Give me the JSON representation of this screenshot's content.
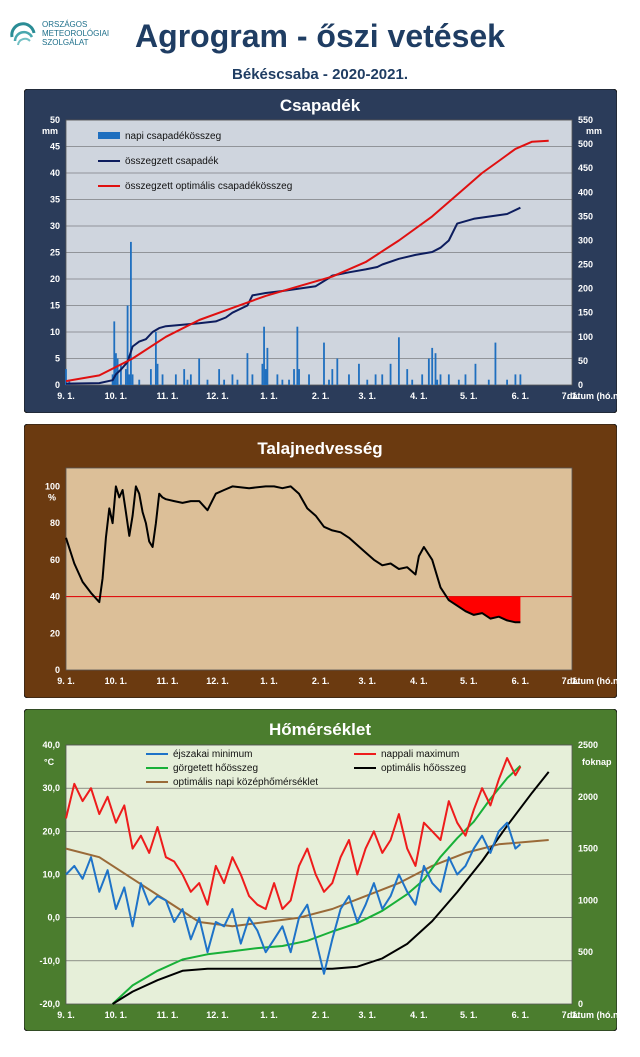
{
  "header": {
    "org_lines": [
      "ORSZÁGOS",
      "METEOROLÓGIAI",
      "SZOLGÁLAT"
    ],
    "title": "Agrogram - őszi vetések",
    "subtitle": "Békéscsaba - 2020-2021."
  },
  "colors": {
    "title": "#1f3d63",
    "panel1_bg": "#2b3c5a",
    "panel1_plot": "#cfd5de",
    "panel2_bg": "#6b3a10",
    "panel2_plot": "#dcbf98",
    "panel3_bg": "#4b7d2e",
    "panel3_plot": "#e6efd9"
  },
  "date_ticks": [
    "9. 1.",
    "10. 1.",
    "11. 1.",
    "12. 1.",
    "1. 1.",
    "2. 1.",
    "3. 1.",
    "4. 1.",
    "5. 1.",
    "6. 1.",
    "7. 1."
  ],
  "x_axis_label": "dátum (hó.nap)",
  "chart_data": [
    {
      "type": "bar+line",
      "title": "Csapadék",
      "y_left_unit": "mm",
      "y_right_unit": "mm",
      "y_left_ticks": [
        "0",
        "5",
        "10",
        "15",
        "20",
        "25",
        "30",
        "35",
        "40",
        "45",
        "50"
      ],
      "y_right_ticks": [
        "0",
        "50",
        "100",
        "150",
        "200",
        "250",
        "300",
        "350",
        "400",
        "450",
        "500",
        "550"
      ],
      "ylim_left": [
        0,
        50
      ],
      "ylim_right": [
        0,
        550
      ],
      "legend": [
        "napi csapadékösszeg",
        "összegzett csapadék",
        "összegzett optimális csapadékösszeg"
      ],
      "series": [
        {
          "name": "napi csapadékösszeg",
          "axis": "left",
          "kind": "bar",
          "color": "#1f6fbf",
          "x": [
            0,
            2,
            28,
            29,
            30,
            31,
            33,
            36,
            37,
            38,
            39,
            40,
            44,
            51,
            54,
            55,
            58,
            66,
            71,
            73,
            75,
            80,
            85,
            92,
            95,
            100,
            103,
            109,
            112,
            118,
            119,
            120,
            121,
            127,
            130,
            134,
            137,
            139,
            140,
            146,
            155,
            158,
            160,
            163,
            170,
            176,
            181,
            186,
            190,
            195,
            200,
            205,
            208,
            214,
            218,
            220,
            222,
            223,
            225,
            230,
            236,
            240,
            246,
            254,
            258,
            265,
            270,
            273
          ],
          "y": [
            3,
            1,
            2,
            12,
            6,
            5,
            4,
            3,
            15,
            2,
            27,
            2,
            1,
            3,
            10,
            4,
            2,
            2,
            3,
            1,
            2,
            5,
            1,
            3,
            1,
            2,
            1,
            6,
            2,
            4,
            11,
            3,
            7,
            2,
            1,
            1,
            3,
            11,
            3,
            2,
            8,
            1,
            3,
            5,
            2,
            4,
            1,
            2,
            2,
            4,
            9,
            3,
            1,
            2,
            5,
            7,
            6,
            1,
            2,
            2,
            1,
            2,
            4,
            1,
            8,
            1,
            2,
            2
          ]
        },
        {
          "name": "összegzett csapadék",
          "axis": "right",
          "kind": "line",
          "color": "#0d1d5e",
          "x": [
            0,
            20,
            28,
            30,
            33,
            37,
            40,
            44,
            48,
            52,
            56,
            60,
            70,
            80,
            90,
            96,
            100,
            109,
            112,
            120,
            130,
            140,
            150,
            157,
            160,
            170,
            180,
            187,
            190,
            200,
            210,
            220,
            225,
            230,
            235,
            245,
            255,
            265,
            273
          ],
          "y": [
            3,
            4,
            10,
            22,
            32,
            48,
            80,
            90,
            95,
            110,
            118,
            122,
            125,
            128,
            132,
            140,
            150,
            165,
            186,
            191,
            195,
            200,
            205,
            220,
            227,
            234,
            240,
            245,
            250,
            262,
            270,
            276,
            285,
            300,
            335,
            345,
            350,
            355,
            368
          ]
        },
        {
          "name": "összegzett optimális csapadékösszeg",
          "axis": "right",
          "kind": "line",
          "color": "#e01010",
          "x": [
            0,
            20,
            40,
            60,
            80,
            100,
            120,
            140,
            160,
            180,
            200,
            220,
            240,
            250,
            260,
            270,
            280,
            290
          ],
          "y": [
            8,
            20,
            55,
            100,
            135,
            160,
            185,
            205,
            225,
            255,
            300,
            350,
            410,
            440,
            465,
            490,
            505,
            507
          ]
        }
      ]
    },
    {
      "type": "line",
      "title": "Talajnedvesség",
      "y_unit": "%",
      "y_ticks": [
        "0",
        "20",
        "40",
        "60",
        "80",
        "100"
      ],
      "ylim": [
        0,
        110
      ],
      "threshold": 40,
      "series": [
        {
          "name": "talajnedvesség",
          "color": "#000000",
          "x": [
            0,
            5,
            10,
            15,
            20,
            22,
            24,
            26,
            28,
            30,
            32,
            34,
            36,
            38,
            40,
            42,
            44,
            46,
            48,
            50,
            52,
            54,
            56,
            58,
            60,
            65,
            70,
            75,
            80,
            85,
            90,
            95,
            100,
            110,
            120,
            125,
            130,
            135,
            140,
            145,
            150,
            155,
            160,
            165,
            170,
            175,
            180,
            185,
            190,
            195,
            200,
            205,
            210,
            212,
            215,
            220,
            225,
            230,
            235,
            240,
            245,
            250,
            255,
            260,
            265,
            270,
            273
          ],
          "y": [
            72,
            58,
            48,
            42,
            37,
            50,
            72,
            88,
            80,
            100,
            94,
            98,
            86,
            73,
            84,
            100,
            96,
            86,
            80,
            70,
            67,
            80,
            96,
            94,
            93,
            92,
            91,
            92,
            92,
            87,
            96,
            98,
            100,
            99,
            100,
            100,
            99,
            100,
            96,
            88,
            84,
            78,
            76,
            75,
            72,
            68,
            64,
            60,
            57,
            58,
            55,
            56,
            52,
            62,
            67,
            60,
            45,
            38,
            35,
            32,
            30,
            31,
            28,
            29,
            27,
            26,
            26
          ]
        }
      ]
    },
    {
      "type": "line",
      "title": "Hőmérséklet",
      "y_left_unit": "°C",
      "y_right_unit": "foknap",
      "y_left_ticks": [
        "-20,0",
        "-10,0",
        "0,0",
        "10,0",
        "20,0",
        "30,0",
        "40,0"
      ],
      "y_right_ticks": [
        "0",
        "500",
        "1000",
        "1500",
        "2000",
        "2500"
      ],
      "ylim_left": [
        -20,
        40
      ],
      "ylim_right": [
        0,
        2500
      ],
      "legend": [
        "éjszakai minimum",
        "nappali maximum",
        "görgetett hőösszeg",
        "optimális hőösszeg",
        "optimális napi középhőmérséklet"
      ],
      "series": [
        {
          "name": "éjszakai minimum",
          "axis": "left",
          "color": "#1e73c8",
          "x": [
            0,
            5,
            10,
            15,
            20,
            25,
            30,
            35,
            40,
            45,
            50,
            55,
            60,
            65,
            70,
            75,
            80,
            85,
            90,
            95,
            100,
            105,
            110,
            115,
            120,
            125,
            130,
            135,
            140,
            145,
            150,
            155,
            160,
            165,
            170,
            175,
            180,
            185,
            190,
            195,
            200,
            205,
            210,
            215,
            220,
            225,
            230,
            235,
            240,
            245,
            250,
            255,
            260,
            265,
            270,
            273
          ],
          "y": [
            10,
            12,
            9,
            14,
            6,
            11,
            2,
            7,
            -2,
            8,
            3,
            5,
            4,
            -1,
            2,
            -5,
            0,
            -8,
            -1,
            -2,
            2,
            -6,
            0,
            -3,
            -8,
            -5,
            -2,
            -8,
            0,
            3,
            -5,
            -13,
            -5,
            2,
            5,
            -1,
            3,
            8,
            2,
            5,
            10,
            6,
            3,
            12,
            8,
            6,
            14,
            10,
            12,
            16,
            19,
            15,
            20,
            22,
            16,
            17
          ]
        },
        {
          "name": "nappali maximum",
          "axis": "left",
          "color": "#ee1c1c",
          "x": [
            0,
            5,
            10,
            15,
            20,
            25,
            30,
            35,
            40,
            45,
            50,
            55,
            60,
            65,
            70,
            75,
            80,
            85,
            90,
            95,
            100,
            105,
            110,
            115,
            120,
            125,
            130,
            135,
            140,
            145,
            150,
            155,
            160,
            165,
            170,
            175,
            180,
            185,
            190,
            195,
            200,
            205,
            210,
            215,
            220,
            225,
            230,
            235,
            240,
            245,
            250,
            255,
            260,
            265,
            270,
            273
          ],
          "y": [
            23,
            31,
            27,
            30,
            24,
            28,
            22,
            26,
            16,
            19,
            15,
            21,
            14,
            13,
            10,
            6,
            8,
            3,
            12,
            8,
            14,
            10,
            5,
            3,
            2,
            8,
            2,
            4,
            12,
            16,
            10,
            6,
            8,
            14,
            18,
            10,
            16,
            20,
            15,
            18,
            24,
            16,
            12,
            22,
            20,
            18,
            27,
            22,
            19,
            25,
            30,
            26,
            32,
            37,
            33,
            35
          ]
        },
        {
          "name": "görgetett hőösszeg",
          "axis": "right",
          "color": "#18b038",
          "x": [
            28,
            40,
            55,
            70,
            85,
            100,
            115,
            130,
            145,
            160,
            175,
            190,
            205,
            215,
            225,
            235,
            245,
            255,
            265,
            273
          ],
          "y": [
            0,
            180,
            320,
            430,
            480,
            510,
            540,
            560,
            610,
            700,
            780,
            900,
            1060,
            1200,
            1420,
            1600,
            1760,
            1980,
            2180,
            2300
          ]
        },
        {
          "name": "optimális hőösszeg",
          "axis": "right",
          "color": "#000000",
          "x": [
            28,
            40,
            55,
            70,
            85,
            100,
            115,
            130,
            145,
            160,
            175,
            190,
            205,
            220,
            235,
            250,
            265,
            280,
            290
          ],
          "y": [
            0,
            120,
            230,
            320,
            340,
            340,
            340,
            340,
            340,
            340,
            360,
            440,
            580,
            800,
            1080,
            1380,
            1720,
            2040,
            2240
          ]
        },
        {
          "name": "optimális napi középhőmérséklet",
          "axis": "left",
          "color": "#9a6a38",
          "x": [
            0,
            20,
            40,
            60,
            80,
            100,
            120,
            140,
            160,
            180,
            200,
            220,
            240,
            260,
            290
          ],
          "y": [
            16,
            14,
            9,
            4,
            -1,
            -2,
            -1,
            0,
            2,
            5,
            8,
            12,
            15,
            17,
            18
          ]
        }
      ]
    }
  ]
}
